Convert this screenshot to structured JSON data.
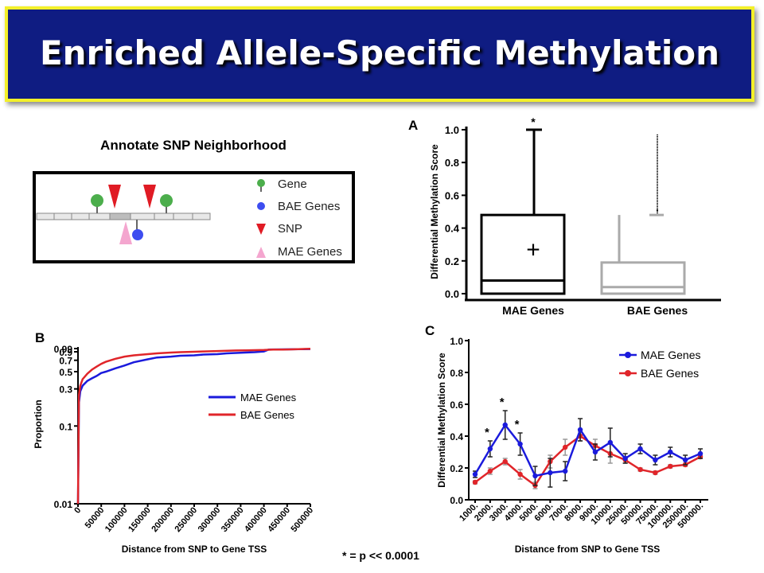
{
  "slide": {
    "title": "Enriched Allele-Specific Methylation",
    "footnote": "* = p << 0.0001",
    "colors": {
      "banner_fill": "#0f1c82",
      "banner_border": "#f3f02a",
      "mae": "#1a1adc",
      "bae": "#e0252a",
      "box_bae": "#aaaaaa"
    }
  },
  "schematic": {
    "heading": "Annotate SNP Neighborhood",
    "legend": [
      {
        "label": "Gene",
        "icon": "green-lollipop-icon"
      },
      {
        "label": "BAE Genes",
        "icon": "blue-dot-icon"
      },
      {
        "label": "SNP",
        "icon": "red-triangle-down-icon"
      },
      {
        "label": "MAE Genes",
        "icon": "pink-triangle-up-icon"
      }
    ]
  },
  "panel_labels": {
    "a": "A",
    "b": "B",
    "c": "C"
  },
  "chart_data": [
    {
      "panel": "A",
      "type": "box",
      "ylabel": "Differential Methylation Score",
      "ylim": [
        0,
        1.0
      ],
      "yticks": [
        "0.0",
        "0.2",
        "0.4",
        "0.6",
        "0.8",
        "1.0"
      ],
      "categories": [
        "MAE Genes",
        "BAE Genes"
      ],
      "boxes": [
        {
          "category": "MAE Genes",
          "min": 0.0,
          "q1": 0.0,
          "median": 0.08,
          "q3": 0.48,
          "max": 1.0,
          "mean_marker": "+",
          "mean": 0.27,
          "annotation": "*"
        },
        {
          "category": "BAE Genes",
          "min": 0.0,
          "q1": 0.0,
          "median": 0.04,
          "q3": 0.19,
          "max": 0.48,
          "outliers_top": 0.97,
          "annotation": "."
        }
      ]
    },
    {
      "panel": "B",
      "type": "line",
      "xlabel": "Distance from SNP to Gene TSS",
      "ylabel": "Proportion",
      "yscale": "log",
      "xlim": [
        0,
        500000
      ],
      "ylim": [
        0.01,
        0.99
      ],
      "xticks": [
        "0",
        "50000",
        "100000",
        "150000",
        "200000",
        "250000",
        "300000",
        "350000",
        "400000",
        "450000",
        "500000"
      ],
      "yticks": [
        "0.01",
        "0.1",
        "0.3",
        "0.5",
        "0.7",
        "0.9",
        "0.99"
      ],
      "legend_position": "right",
      "series": [
        {
          "name": "MAE Genes",
          "x": [
            0,
            2000,
            5000,
            10000,
            20000,
            30000,
            40000,
            50000,
            60000,
            80000,
            100000,
            120000,
            150000,
            170000,
            200000,
            220000,
            250000,
            270000,
            300000,
            320000,
            340000,
            360000,
            380000,
            400000,
            410000,
            420000,
            440000,
            460000,
            480000,
            500000
          ],
          "y": [
            0.01,
            0.2,
            0.28,
            0.33,
            0.38,
            0.41,
            0.44,
            0.48,
            0.5,
            0.55,
            0.6,
            0.66,
            0.72,
            0.76,
            0.78,
            0.8,
            0.81,
            0.83,
            0.84,
            0.86,
            0.87,
            0.88,
            0.89,
            0.91,
            0.96,
            0.965,
            0.968,
            0.97,
            0.972,
            0.975
          ]
        },
        {
          "name": "BAE Genes",
          "x": [
            0,
            2000,
            5000,
            10000,
            20000,
            30000,
            40000,
            50000,
            60000,
            80000,
            100000,
            120000,
            150000,
            170000,
            200000,
            220000,
            250000,
            270000,
            300000,
            320000,
            340000,
            360000,
            380000,
            400000,
            410000,
            420000,
            440000,
            460000,
            480000,
            500000
          ],
          "y": [
            0.01,
            0.25,
            0.33,
            0.4,
            0.47,
            0.53,
            0.58,
            0.63,
            0.67,
            0.73,
            0.78,
            0.81,
            0.84,
            0.86,
            0.88,
            0.89,
            0.9,
            0.91,
            0.92,
            0.93,
            0.935,
            0.94,
            0.945,
            0.95,
            0.955,
            0.96,
            0.962,
            0.968,
            0.975,
            0.985
          ]
        }
      ]
    },
    {
      "panel": "C",
      "type": "line",
      "xlabel": "Distance from SNP to Gene TSS",
      "ylabel": "Differential Methylation Score",
      "ylim": [
        0,
        1.0
      ],
      "yticks": [
        "0.0",
        "0.2",
        "0.4",
        "0.6",
        "0.8",
        "1.0"
      ],
      "categories": [
        "1000.",
        "2000.",
        "3000.",
        "4000.",
        "5000.",
        "6000.",
        "7000.",
        "8000.",
        "9000.",
        "10000.",
        "25000.",
        "50000.",
        "75000.",
        "100000.",
        "250000.",
        "500000."
      ],
      "legend_position": "top-right",
      "series": [
        {
          "name": "MAE Genes",
          "values": [
            0.16,
            0.32,
            0.47,
            0.35,
            0.15,
            0.17,
            0.18,
            0.44,
            0.3,
            0.36,
            0.26,
            0.32,
            0.25,
            0.3,
            0.25,
            0.29
          ],
          "errors": [
            0.02,
            0.05,
            0.09,
            0.07,
            0.06,
            0.09,
            0.06,
            0.07,
            0.05,
            0.09,
            0.03,
            0.03,
            0.03,
            0.03,
            0.03,
            0.03
          ],
          "annotations": [
            "",
            "*",
            "*",
            "*",
            "",
            "",
            "",
            "",
            "",
            "",
            "",
            "",
            "",
            "",
            "",
            ""
          ]
        },
        {
          "name": "BAE Genes",
          "values": [
            0.11,
            0.18,
            0.24,
            0.16,
            0.09,
            0.24,
            0.33,
            0.4,
            0.34,
            0.29,
            0.25,
            0.19,
            0.17,
            0.21,
            0.22,
            0.27
          ],
          "errors": [
            0.01,
            0.02,
            0.02,
            0.03,
            0.02,
            0.04,
            0.05,
            0.03,
            0.04,
            0.06,
            0.02,
            0.01,
            0.01,
            0.01,
            0.01,
            0.01
          ]
        }
      ]
    }
  ]
}
